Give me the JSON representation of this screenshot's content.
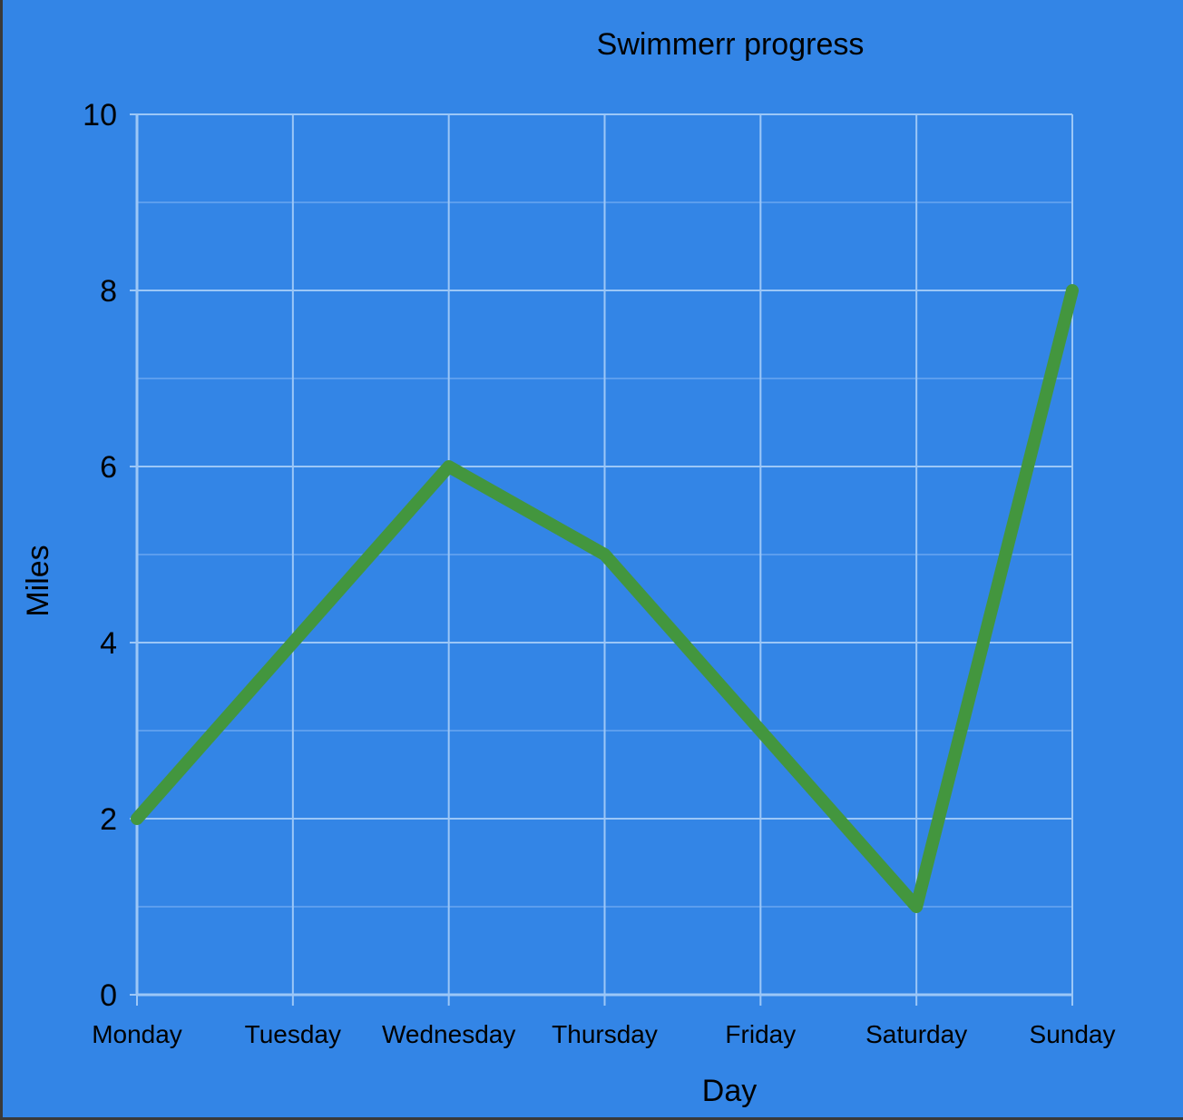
{
  "colors": {
    "background": "#3385e6",
    "grid_major": "#9cc7f7",
    "grid_minor": "#5c9eee",
    "line": "#43963e",
    "text": "#000000"
  },
  "chart_data": {
    "type": "line",
    "title": "Swimmerr progress",
    "xlabel": "Day",
    "ylabel": "Miles",
    "categories": [
      "Monday",
      "Tuesday",
      "Wednesday",
      "Thursday",
      "Friday",
      "Saturday",
      "Sunday"
    ],
    "series": [
      {
        "values": [
          2,
          4,
          6,
          5,
          3,
          1,
          8
        ]
      }
    ],
    "ylim": [
      0,
      10
    ],
    "yticks": [
      "0",
      "2",
      "4",
      "6",
      "8",
      "10"
    ],
    "grid": true,
    "legend": "none"
  }
}
